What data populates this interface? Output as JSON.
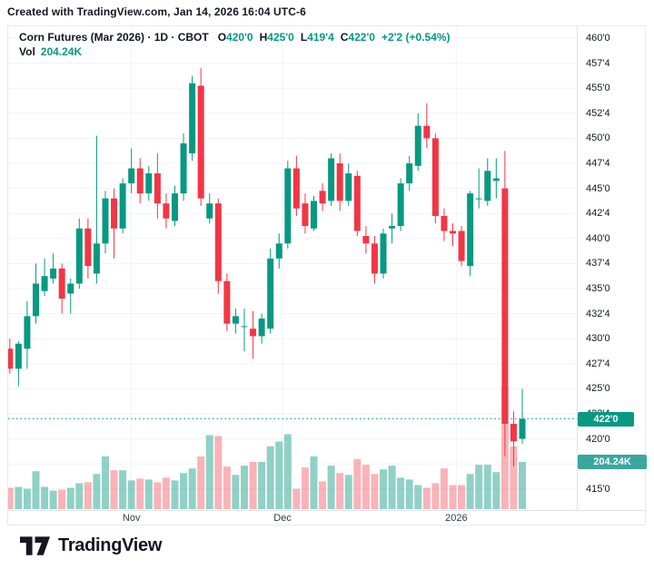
{
  "attribution": "Created with TradingView.com, Jan 14, 2026 16:04 UTC-6",
  "legend": {
    "title": "Corn Futures (Mar 2026) · 1D · CBOT",
    "ohlc": [
      {
        "k": "O",
        "v": "420'0"
      },
      {
        "k": "H",
        "v": "425'0"
      },
      {
        "k": "L",
        "v": "419'4"
      },
      {
        "k": "C",
        "v": "422'0"
      }
    ],
    "change": "+2'2 (+0.54%)",
    "vol_label": "Vol",
    "vol_value": "204.24K"
  },
  "price_line": {
    "price": 422,
    "label": "422'0"
  },
  "volume_label": {
    "value": 204.24,
    "label": "204.24K"
  },
  "logo": {
    "text": "TradingView"
  },
  "colors": {
    "up": "#089981",
    "down": "#f23645",
    "volume_up": "rgba(8,153,129,0.45)",
    "volume_down": "rgba(242,54,69,0.38)",
    "price_badge_bg": "#089981",
    "volume_badge_bg": "#3aa79e",
    "grid": "#f0f3fa",
    "axis_text": "#131722",
    "accent_text": "#089981",
    "price_line": "#089981"
  },
  "chart_data": {
    "type": "candlestick",
    "title": "Corn Futures (Mar 2026), Daily, CBOT",
    "ylim": [
      415,
      460
    ],
    "price_format": "eighths",
    "volume_unit": "K",
    "price_ticks": [
      {
        "price": 460.0,
        "label": "460'0"
      },
      {
        "price": 457.5,
        "label": "457'4"
      },
      {
        "price": 455.0,
        "label": "455'0"
      },
      {
        "price": 452.5,
        "label": "452'4"
      },
      {
        "price": 450.0,
        "label": "450'0"
      },
      {
        "price": 447.5,
        "label": "447'4"
      },
      {
        "price": 445.0,
        "label": "445'0"
      },
      {
        "price": 442.5,
        "label": "442'4"
      },
      {
        "price": 440.0,
        "label": "440'0"
      },
      {
        "price": 437.5,
        "label": "437'4"
      },
      {
        "price": 435.0,
        "label": "435'0"
      },
      {
        "price": 432.5,
        "label": "432'4"
      },
      {
        "price": 430.0,
        "label": "430'0"
      },
      {
        "price": 427.5,
        "label": "427'4"
      },
      {
        "price": 425.0,
        "label": "425'0"
      },
      {
        "price": 422.5,
        "label": "422'4"
      },
      {
        "price": 420.0,
        "label": "420'0"
      },
      {
        "price": 417.5,
        "label": "417'4"
      },
      {
        "price": 415.0,
        "label": "415'0"
      }
    ],
    "time_ticks": [
      {
        "label": "Nov",
        "index": 14
      },
      {
        "label": "Dec",
        "index": 31.4
      },
      {
        "label": "2026",
        "index": 51.4
      }
    ],
    "candles": [
      [
        429.0,
        430.0,
        426.5,
        427.0,
        92
      ],
      [
        427.0,
        429.75,
        425.25,
        429.5,
        96
      ],
      [
        429.0,
        433.75,
        427.0,
        432.25,
        88
      ],
      [
        432.25,
        437.5,
        431.5,
        435.5,
        164
      ],
      [
        434.75,
        438.0,
        434.25,
        436.25,
        96
      ],
      [
        436.0,
        438.5,
        435.5,
        437.0,
        80
      ],
      [
        437.0,
        437.5,
        432.5,
        434.0,
        84
      ],
      [
        434.5,
        436.0,
        432.5,
        435.5,
        92
      ],
      [
        435.5,
        442.0,
        435.0,
        441.0,
        112
      ],
      [
        441.0,
        442.0,
        436.0,
        437.25,
        116
      ],
      [
        436.5,
        450.25,
        435.5,
        439.5,
        152
      ],
      [
        439.5,
        444.75,
        438.5,
        444.0,
        228
      ],
      [
        444.0,
        445.0,
        438.0,
        441.0,
        168
      ],
      [
        441.0,
        446.0,
        440.5,
        445.5,
        168
      ],
      [
        445.5,
        449.0,
        444.5,
        447.0,
        124
      ],
      [
        447.0,
        448.0,
        443.5,
        444.5,
        132
      ],
      [
        444.5,
        447.25,
        443.75,
        446.5,
        128
      ],
      [
        446.5,
        448.5,
        442.0,
        443.5,
        116
      ],
      [
        443.5,
        444.5,
        441.0,
        442.0,
        136
      ],
      [
        441.75,
        445.25,
        441.25,
        444.5,
        124
      ],
      [
        444.5,
        450.5,
        443.75,
        449.5,
        156
      ],
      [
        448.5,
        456.25,
        447.75,
        455.5,
        176
      ],
      [
        455.25,
        457.0,
        443.25,
        444.0,
        228
      ],
      [
        442.0,
        444.5,
        441.5,
        443.5,
        320
      ],
      [
        443.5,
        444.0,
        434.5,
        435.75,
        316
      ],
      [
        435.75,
        436.5,
        430.75,
        431.5,
        184
      ],
      [
        431.5,
        433.0,
        430.5,
        432.25,
        148
      ],
      [
        431.25,
        433.0,
        428.75,
        431.25,
        188
      ],
      [
        431.0,
        432.75,
        428.0,
        430.25,
        204
      ],
      [
        430.25,
        432.5,
        429.5,
        432.0,
        204
      ],
      [
        431.0,
        439.0,
        430.5,
        438.0,
        272
      ],
      [
        438.0,
        440.5,
        437.0,
        439.5,
        292
      ],
      [
        439.5,
        447.75,
        439.0,
        447.0,
        324
      ],
      [
        447.0,
        448.25,
        442.25,
        443.0,
        88
      ],
      [
        443.5,
        444.5,
        440.5,
        441.25,
        180
      ],
      [
        441.0,
        444.25,
        440.75,
        443.75,
        228
      ],
      [
        444.75,
        445.5,
        442.75,
        443.5,
        120
      ],
      [
        443.75,
        448.5,
        443.25,
        448.0,
        188
      ],
      [
        447.5,
        448.5,
        442.75,
        443.75,
        156
      ],
      [
        443.75,
        447.5,
        443.25,
        446.5,
        148
      ],
      [
        446.25,
        446.75,
        440.25,
        440.75,
        216
      ],
      [
        440.25,
        441.25,
        438.5,
        439.5,
        192
      ],
      [
        439.5,
        440.25,
        435.5,
        436.5,
        152
      ],
      [
        436.5,
        441.0,
        436.0,
        440.5,
        172
      ],
      [
        441.0,
        442.5,
        439.5,
        441.25,
        188
      ],
      [
        441.25,
        446.0,
        440.75,
        445.5,
        136
      ],
      [
        445.5,
        448.25,
        444.75,
        447.5,
        128
      ],
      [
        447.25,
        452.5,
        446.75,
        451.25,
        104
      ],
      [
        451.25,
        453.5,
        449.0,
        450.0,
        92
      ],
      [
        450.0,
        450.5,
        441.5,
        442.25,
        112
      ],
      [
        442.25,
        443.0,
        439.75,
        440.75,
        176
      ],
      [
        440.75,
        441.5,
        439.25,
        440.5,
        104
      ],
      [
        440.75,
        441.25,
        437.25,
        437.75,
        104
      ],
      [
        437.25,
        444.75,
        436.25,
        444.5,
        152
      ],
      [
        444.0,
        447.0,
        443.0,
        444.0,
        192
      ],
      [
        443.75,
        448.0,
        443.25,
        446.75,
        192
      ],
      [
        445.75,
        448.0,
        444.0,
        446.0,
        160
      ],
      [
        445.0,
        448.75,
        418.25,
        421.5,
        530
      ],
      [
        421.5,
        422.75,
        417.25,
        419.75,
        272
      ],
      [
        420.0,
        425.0,
        419.5,
        422.0,
        204.24
      ]
    ]
  }
}
